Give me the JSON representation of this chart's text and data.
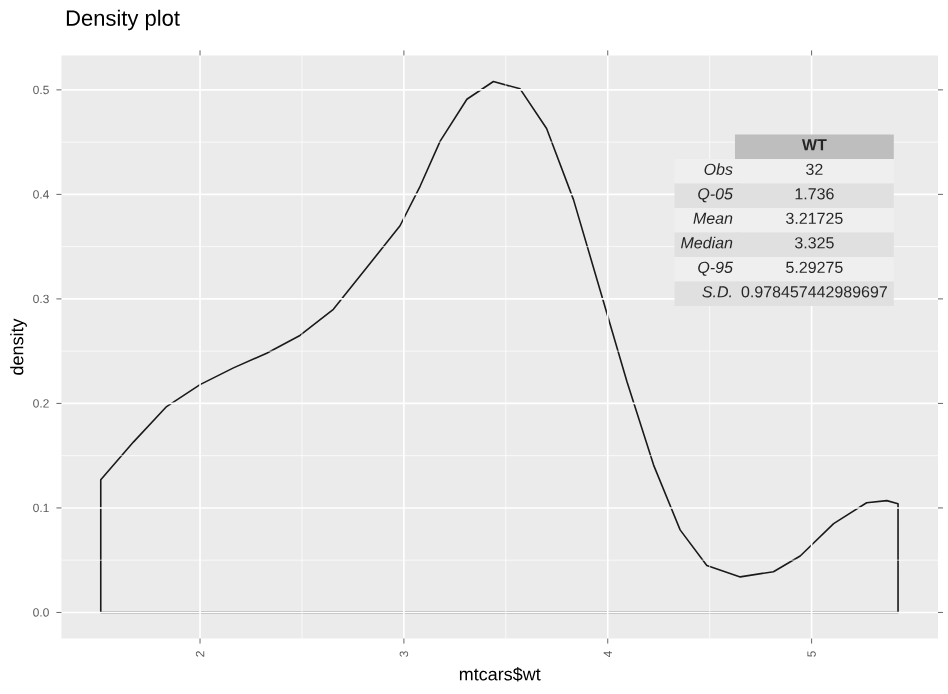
{
  "chart_data": {
    "type": "area",
    "title": "Density plot",
    "xlabel": "mtcars$wt",
    "ylabel": "density",
    "x": [
      1.513,
      1.673,
      1.836,
      2.0,
      2.164,
      2.327,
      2.49,
      2.654,
      2.818,
      2.981,
      3.08,
      3.178,
      3.309,
      3.439,
      3.57,
      3.7,
      3.832,
      3.963,
      4.094,
      4.225,
      4.355,
      4.486,
      4.65,
      4.813,
      4.944,
      5.108,
      5.27,
      5.369,
      5.424
    ],
    "series": [
      {
        "color": "#1a1a1a",
        "values": [
          0.127,
          0.163,
          0.197,
          0.218,
          0.234,
          0.248,
          0.265,
          0.29,
          0.33,
          0.37,
          0.408,
          0.451,
          0.491,
          0.508,
          0.501,
          0.463,
          0.395,
          0.308,
          0.221,
          0.141,
          0.079,
          0.045,
          0.034,
          0.039,
          0.054,
          0.085,
          0.105,
          0.107,
          0.104
        ]
      }
    ],
    "xlim": [
      1.32,
      5.62
    ],
    "ylim": [
      -0.025,
      0.533
    ],
    "xticks": [
      2,
      3,
      4,
      5
    ],
    "yticks": [
      {
        "value": 0,
        "label": "0.0"
      },
      0.1,
      0.2,
      0.3,
      0.4,
      0.5
    ],
    "grid": true,
    "annotations": [
      "WT",
      "*Obs*",
      "32",
      "*Q-05*",
      "1.736",
      "*Mean*",
      "3.21725",
      "*Median*",
      "3.325",
      "*Q-95*",
      "5.29275",
      "*S.D.*",
      "0.978457442989697"
    ]
  }
}
